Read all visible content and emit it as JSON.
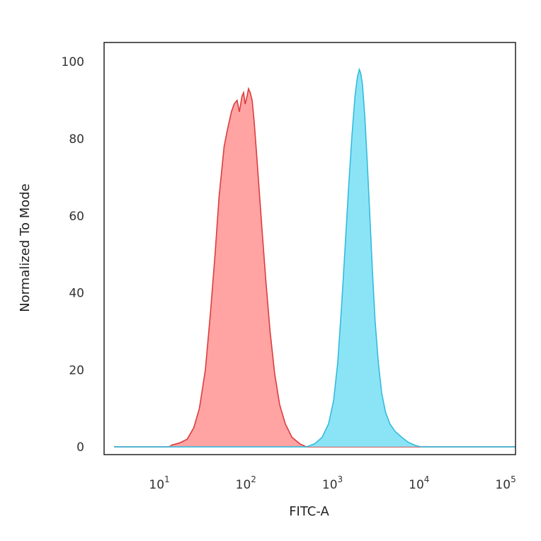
{
  "chart_data": {
    "type": "area",
    "title": "",
    "xlabel": "FITC-A",
    "ylabel": "Normalized To Mode",
    "x_scale": "log",
    "xlim": [
      2.3,
      130000
    ],
    "ylim": [
      -2,
      105
    ],
    "x_ticks": [
      {
        "base": "10",
        "exp": "1",
        "value": 10
      },
      {
        "base": "10",
        "exp": "2",
        "value": 100
      },
      {
        "base": "10",
        "exp": "3",
        "value": 1000
      },
      {
        "base": "10",
        "exp": "4",
        "value": 10000
      },
      {
        "base": "10",
        "exp": "5",
        "value": 100000
      }
    ],
    "y_ticks": [
      {
        "label": "0",
        "value": 0
      },
      {
        "label": "20",
        "value": 20
      },
      {
        "label": "40",
        "value": 40
      },
      {
        "label": "60",
        "value": 60
      },
      {
        "label": "80",
        "value": 80
      },
      {
        "label": "100",
        "value": 100
      }
    ],
    "grid": false,
    "legend": "none",
    "series": [
      {
        "fill": "#ff9999",
        "stroke": "#dd3c3c",
        "points": [
          [
            3,
            0
          ],
          [
            13,
            0
          ],
          [
            14,
            0.5
          ],
          [
            17,
            1
          ],
          [
            21,
            2
          ],
          [
            25,
            5
          ],
          [
            29,
            10
          ],
          [
            34,
            20
          ],
          [
            39,
            35
          ],
          [
            44,
            50
          ],
          [
            49,
            65
          ],
          [
            56,
            78
          ],
          [
            62,
            83
          ],
          [
            68,
            87
          ],
          [
            73,
            89
          ],
          [
            79,
            90
          ],
          [
            84,
            87
          ],
          [
            87,
            89
          ],
          [
            90,
            91
          ],
          [
            94,
            92
          ],
          [
            98,
            89
          ],
          [
            103,
            91
          ],
          [
            107,
            93
          ],
          [
            112,
            92
          ],
          [
            118,
            90
          ],
          [
            124,
            85
          ],
          [
            132,
            77
          ],
          [
            142,
            67
          ],
          [
            155,
            55
          ],
          [
            170,
            43
          ],
          [
            190,
            30
          ],
          [
            215,
            19
          ],
          [
            245,
            11
          ],
          [
            285,
            6
          ],
          [
            340,
            2.5
          ],
          [
            420,
            0.8
          ],
          [
            500,
            0
          ],
          [
            130000,
            0
          ]
        ]
      },
      {
        "fill": "#7ee1f5",
        "stroke": "#33bbdd",
        "points": [
          [
            3,
            0
          ],
          [
            500,
            0
          ],
          [
            620,
            0.8
          ],
          [
            760,
            2.5
          ],
          [
            900,
            6
          ],
          [
            1030,
            12
          ],
          [
            1150,
            22
          ],
          [
            1270,
            36
          ],
          [
            1400,
            52
          ],
          [
            1540,
            68
          ],
          [
            1680,
            81
          ],
          [
            1820,
            91
          ],
          [
            1940,
            96
          ],
          [
            2040,
            98
          ],
          [
            2120,
            97
          ],
          [
            2220,
            94
          ],
          [
            2360,
            86
          ],
          [
            2520,
            74
          ],
          [
            2700,
            60
          ],
          [
            2900,
            45
          ],
          [
            3100,
            33
          ],
          [
            3380,
            22
          ],
          [
            3700,
            14
          ],
          [
            4100,
            9
          ],
          [
            4600,
            6
          ],
          [
            5300,
            4
          ],
          [
            6300,
            2.5
          ],
          [
            7500,
            1.2
          ],
          [
            9000,
            0.4
          ],
          [
            10500,
            0
          ],
          [
            130000,
            0
          ]
        ]
      }
    ]
  }
}
